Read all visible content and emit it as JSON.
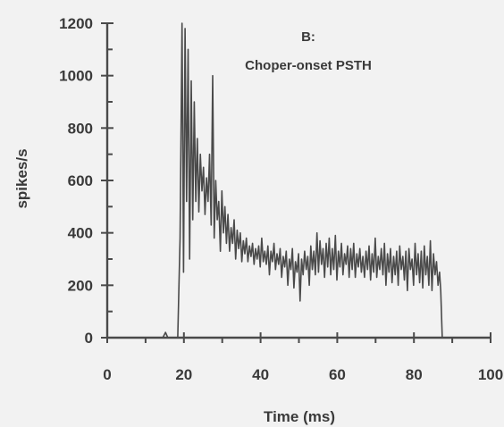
{
  "chart_data": {
    "type": "line",
    "panel_label": "B:",
    "title": "Choper-onset PSTH",
    "xlabel": "Time (ms)",
    "ylabel": "spikes/s",
    "xlim": [
      0,
      100
    ],
    "ylim": [
      0,
      1200
    ],
    "x_ticks": [
      "0",
      "20",
      "40",
      "60",
      "80",
      "100"
    ],
    "y_ticks": [
      "0",
      "200",
      "400",
      "600",
      "800",
      "1000",
      "1200"
    ],
    "grid": false,
    "series": [
      {
        "color": "#4a4a4a",
        "x": [
          0,
          14.5,
          15.2,
          15.8,
          18.4,
          19.0,
          19.5,
          19.9,
          20.3,
          20.7,
          21.1,
          21.5,
          21.9,
          22.3,
          22.7,
          23.1,
          23.5,
          23.9,
          24.3,
          24.7,
          25.1,
          25.5,
          25.9,
          26.3,
          26.7,
          27.1,
          27.5,
          27.9,
          28.3,
          28.7,
          29.1,
          29.5,
          29.9,
          30.3,
          30.7,
          31.1,
          31.5,
          31.9,
          32.3,
          32.7,
          33.1,
          33.5,
          33.9,
          34.3,
          34.7,
          35.1,
          35.5,
          35.9,
          36.3,
          36.7,
          37.1,
          37.5,
          37.9,
          38.3,
          38.7,
          39.1,
          39.5,
          39.9,
          40.3,
          40.7,
          41.1,
          41.5,
          41.9,
          42.3,
          42.7,
          43.1,
          43.5,
          43.9,
          44.3,
          44.7,
          45.1,
          45.5,
          45.9,
          46.3,
          46.7,
          47.1,
          47.5,
          47.9,
          48.3,
          48.7,
          49.1,
          49.5,
          49.9,
          50.3,
          50.7,
          51.1,
          51.5,
          51.9,
          52.3,
          52.7,
          53.1,
          53.5,
          53.9,
          54.3,
          54.7,
          55.1,
          55.5,
          55.9,
          56.3,
          56.7,
          57.1,
          57.5,
          57.9,
          58.3,
          58.7,
          59.1,
          59.5,
          59.9,
          60.3,
          60.7,
          61.1,
          61.5,
          61.9,
          62.3,
          62.7,
          63.1,
          63.5,
          63.9,
          64.3,
          64.7,
          65.1,
          65.5,
          65.9,
          66.3,
          66.7,
          67.1,
          67.5,
          67.9,
          68.3,
          68.7,
          69.1,
          69.5,
          69.9,
          70.3,
          70.7,
          71.1,
          71.5,
          71.9,
          72.3,
          72.7,
          73.1,
          73.5,
          73.9,
          74.3,
          74.7,
          75.1,
          75.5,
          75.9,
          76.3,
          76.7,
          77.1,
          77.5,
          77.9,
          78.3,
          78.7,
          79.1,
          79.5,
          79.9,
          80.3,
          80.7,
          81.1,
          81.5,
          81.9,
          82.3,
          82.7,
          83.1,
          83.5,
          83.9,
          84.3,
          84.7,
          85.1,
          85.5,
          85.9,
          86.3,
          86.7,
          87.0,
          87.4,
          100
        ],
        "y": [
          0,
          0,
          20,
          0,
          0,
          380,
          1200,
          250,
          1180,
          520,
          1100,
          300,
          980,
          450,
          900,
          520,
          760,
          480,
          700,
          560,
          650,
          470,
          610,
          520,
          700,
          430,
          1000,
          380,
          600,
          450,
          520,
          330,
          560,
          400,
          500,
          360,
          470,
          330,
          420,
          360,
          450,
          300,
          410,
          340,
          400,
          290,
          370,
          320,
          380,
          290,
          350,
          310,
          360,
          280,
          340,
          300,
          350,
          270,
          380,
          290,
          330,
          280,
          350,
          240,
          330,
          290,
          360,
          260,
          320,
          280,
          340,
          230,
          310,
          270,
          330,
          200,
          300,
          260,
          340,
          190,
          290,
          250,
          320,
          140,
          300,
          240,
          330,
          260,
          310,
          200,
          350,
          260,
          330,
          240,
          400,
          250,
          370,
          280,
          340,
          230,
          360,
          270,
          380,
          240,
          340,
          260,
          390,
          220,
          330,
          270,
          360,
          240,
          320,
          280,
          350,
          230,
          340,
          260,
          360,
          230,
          320,
          270,
          340,
          250,
          310,
          230,
          330,
          260,
          350,
          220,
          320,
          250,
          380,
          230,
          310,
          260,
          340,
          240,
          360,
          200,
          320,
          250,
          340,
          210,
          310,
          240,
          330,
          200,
          350,
          260,
          310,
          220,
          330,
          180,
          340,
          260,
          300,
          200,
          360,
          240,
          320,
          210,
          330,
          190,
          350,
          240,
          310,
          200,
          370,
          180,
          320,
          240,
          290,
          200,
          250,
          180,
          0,
          0
        ]
      }
    ]
  }
}
